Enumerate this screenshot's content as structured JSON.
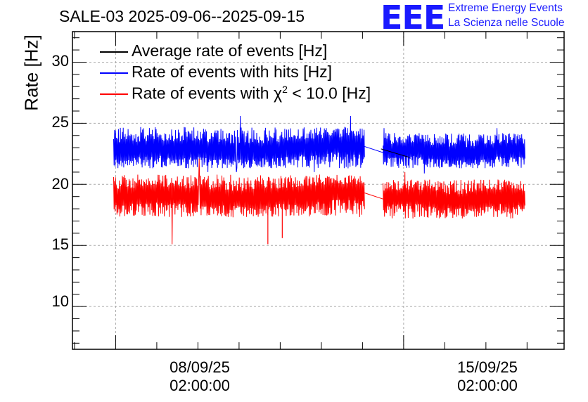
{
  "header": {
    "title": "SALE-03 2025-09-06--2025-09-15",
    "logo_text": "EEE",
    "logo_line1": "Extreme Energy Events",
    "logo_line2": "La Scienza nelle Scuole",
    "brand_color": "#1a1aff"
  },
  "chart_data": {
    "type": "line",
    "ylabel": "Rate [Hz]",
    "ylim": [
      6.5,
      32.5
    ],
    "yticks": [
      "10",
      "15",
      "20",
      "25",
      "30"
    ],
    "xticks": [
      {
        "date": "08/09/25",
        "time": "02:00:00"
      },
      {
        "date": "15/09/25",
        "time": "02:00:00"
      }
    ],
    "x_unit": "days since 2025-09-06 02:00",
    "xlim": [
      -1.05,
      10.9
    ],
    "grid": true,
    "legend_position": "top-left",
    "series": [
      {
        "name": "Average rate of events [Hz]",
        "color": "#000000",
        "segments": [
          {
            "x": [
              6.45,
              7.15
            ],
            "y": [
              22.9,
              22.2
            ]
          }
        ]
      },
      {
        "name": "Rate of events with hits [Hz]",
        "color": "#0000ff",
        "segments": [
          {
            "x_start": -0.05,
            "x_end": 6.05,
            "y_start": 22.5,
            "y_end": 23.1,
            "noise_low": 21.3,
            "noise_high": 24.7,
            "min": 21.0,
            "max": 25.6
          },
          {
            "x_start": 6.5,
            "x_end": 9.95,
            "y_start": 22.6,
            "y_end": 22.6,
            "noise_low": 21.3,
            "noise_high": 24.2,
            "min": 20.9,
            "max": 24.6
          }
        ]
      },
      {
        "name": "Rate of events with χ² < 10.0 [Hz]",
        "legend_prefix": "Rate of events with ",
        "legend_symbol": "χ",
        "legend_sup": "2",
        "legend_suffix": " < 10.0 [Hz]",
        "color": "#ff0000",
        "segments": [
          {
            "x_start": -0.05,
            "x_end": 6.05,
            "y_start": 18.8,
            "y_end": 19.3,
            "noise_low": 17.3,
            "noise_high": 20.8,
            "min": 15.1,
            "max": 22.1
          },
          {
            "x_start": 6.5,
            "x_end": 9.95,
            "y_start": 18.8,
            "y_end": 18.8,
            "noise_low": 17.2,
            "noise_high": 20.4,
            "min": 16.8,
            "max": 21.0
          }
        ]
      }
    ]
  }
}
